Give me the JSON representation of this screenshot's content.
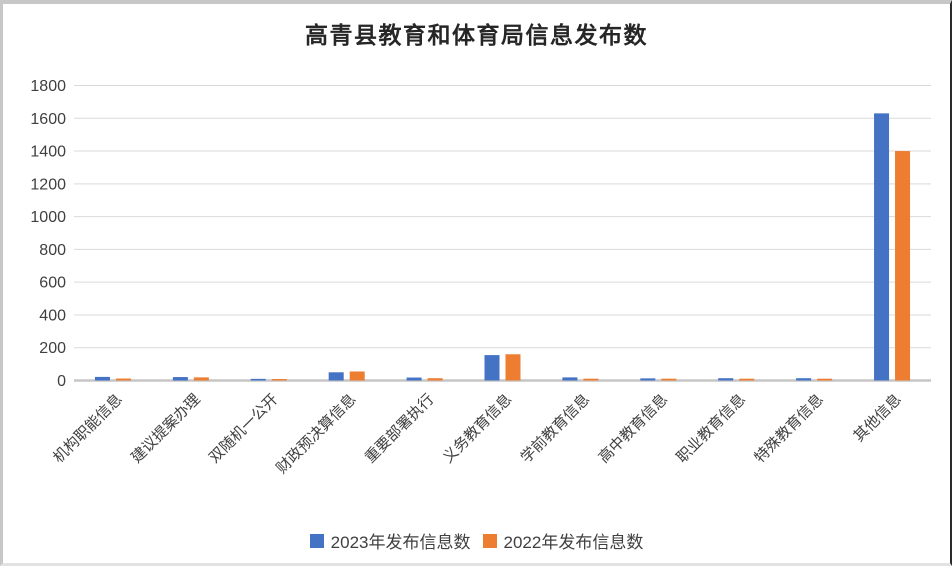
{
  "chart_data": {
    "type": "bar",
    "title": "高青县教育和体育局信息发布数",
    "xlabel": "",
    "ylabel": "",
    "categories": [
      "机构职能信息",
      "建议提案办理",
      "双随机一公开",
      "财政预决算信息",
      "重要部署执行",
      "义务教育信息",
      "学前教育信息",
      "高中教育信息",
      "职业教育信息",
      "特殊教育信息",
      "其他信息"
    ],
    "series": [
      {
        "name": "2023年发布信息数",
        "color": "#4472C4",
        "values": [
          22,
          21,
          10,
          50,
          18,
          155,
          19,
          13,
          14,
          14,
          1630
        ]
      },
      {
        "name": "2022年发布信息数",
        "color": "#ED7D31",
        "values": [
          12,
          19,
          9,
          55,
          14,
          160,
          11,
          11,
          11,
          11,
          1400
        ]
      }
    ],
    "ylim": [
      0,
      1800
    ],
    "yticks": [
      0,
      200,
      400,
      600,
      800,
      1000,
      1200,
      1400,
      1600,
      1800
    ],
    "grid": true,
    "legend_position": "bottom"
  },
  "colors": {
    "series_2023": "#4472C4",
    "series_2022": "#ED7D31",
    "gridline": "#D9D9D9",
    "axis_line": "#C6C6C6",
    "axis_text": "#404040",
    "title_text": "#262626",
    "background": "#FFFFFF"
  }
}
